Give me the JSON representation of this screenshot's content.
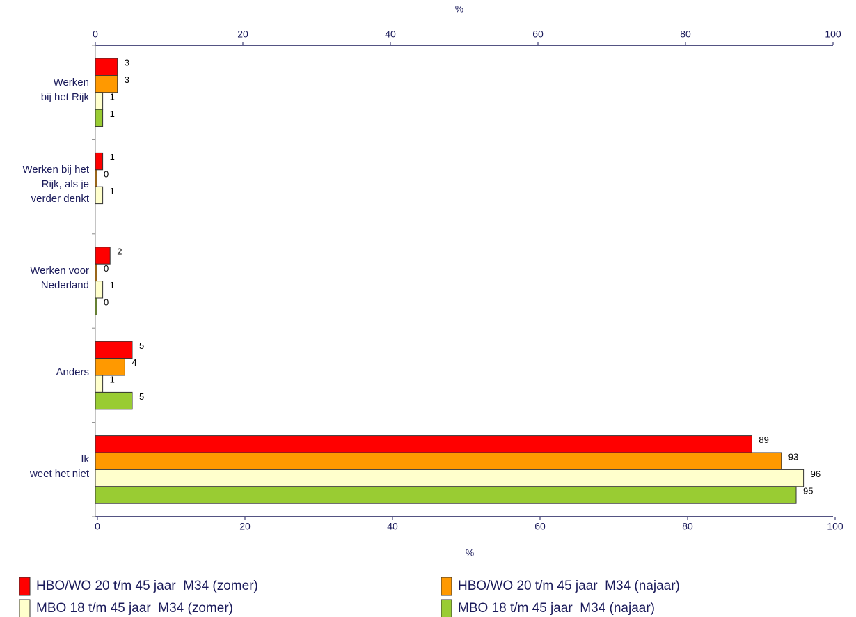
{
  "chart_data": {
    "type": "bar",
    "orientation": "horizontal",
    "xlabel": "%",
    "categories": [
      "Werken\nbij het Rijk",
      "Werken bij het\nRijk, als je\nverder denkt",
      "Werken voor\nNederland",
      "Anders",
      "Ik\nweet het niet"
    ],
    "series": [
      {
        "name": "HBO/WO 20 t/m 45 jaar  M34 (zomer)",
        "color": "#ff0000",
        "values": [
          3,
          1,
          2,
          5,
          89
        ]
      },
      {
        "name": "HBO/WO 20 t/m 45 jaar  M34 (najaar)",
        "color": "#ff9900",
        "values": [
          3,
          0,
          0,
          4,
          93
        ]
      },
      {
        "name": "MBO 18 t/m 45 jaar  M34 (zomer)",
        "color": "#ffffcc",
        "values": [
          1,
          1,
          1,
          1,
          96
        ]
      },
      {
        "name": "MBO 18 t/m 45 jaar  M34 (najaar)",
        "color": "#99cc33",
        "values": [
          1,
          null,
          0,
          5,
          95
        ]
      }
    ],
    "xlim": [
      0,
      100
    ],
    "xticks": [
      0,
      20,
      40,
      60,
      80,
      100
    ]
  }
}
